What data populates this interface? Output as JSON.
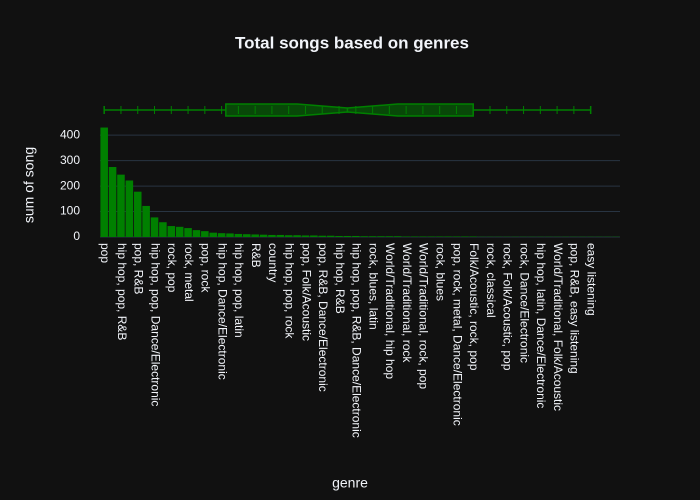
{
  "chart_data": {
    "type": "bar",
    "title": "Total songs based on genres",
    "x_label": "genre",
    "y_label": "sum of song",
    "categories": [
      "pop",
      null,
      "hip hop, pop, R&B",
      null,
      "pop, R&B",
      null,
      "hip hop, pop, Dance/Electronic",
      null,
      "rock, pop",
      null,
      "rock, metal",
      null,
      "pop, rock",
      null,
      "hip hop, Dance/Electronic",
      null,
      "hip hop, pop, latin",
      null,
      "R&B",
      null,
      "country",
      null,
      "hip hop, pop, rock",
      null,
      "pop, Folk/Acoustic",
      null,
      "pop, R&B, Dance/Electronic",
      null,
      "hip hop, R&B",
      null,
      "hip hop, pop, R&B, Dance/Electronic",
      null,
      "rock, blues, latin",
      null,
      "World/Traditional, hip hop",
      null,
      "World/Traditional, rock",
      null,
      "World/Traditional, rock, pop",
      null,
      "rock, blues",
      null,
      "pop, rock, metal, Dance/Electronic",
      null,
      "Folk/Acoustic, rock, pop",
      null,
      "rock, classical",
      null,
      "rock, Folk/Acoustic, pop",
      null,
      "rock, Dance/Electronic",
      null,
      "hip hop, latin, Dance/Electronic",
      null,
      "World/Traditional, Folk/Acoustic",
      null,
      "pop, R&B, easy listening",
      null,
      "easy listening",
      null,
      null,
      null
    ],
    "values": [
      430,
      275,
      245,
      222,
      178,
      122,
      77,
      58,
      43,
      40,
      35,
      27,
      23,
      17,
      15,
      14,
      12,
      11,
      10,
      9,
      8,
      8,
      7,
      7,
      6,
      6,
      5,
      5,
      4,
      4,
      4,
      3,
      3,
      3,
      3,
      3,
      2,
      2,
      2,
      2,
      2,
      2,
      2,
      2,
      2,
      1,
      1,
      1,
      1,
      1,
      1,
      1,
      1,
      1,
      1,
      1,
      1,
      1,
      1,
      1,
      1,
      1
    ],
    "color": "#008000",
    "ylim": [
      0,
      440
    ],
    "yticks": [
      0,
      100,
      200,
      300,
      400
    ],
    "grid": true,
    "marginal_box": {
      "min": 0,
      "q1": 14.5,
      "median": 29,
      "q3": 44,
      "max": 58,
      "notch": [
        23,
        35
      ],
      "color": "#008000"
    }
  }
}
